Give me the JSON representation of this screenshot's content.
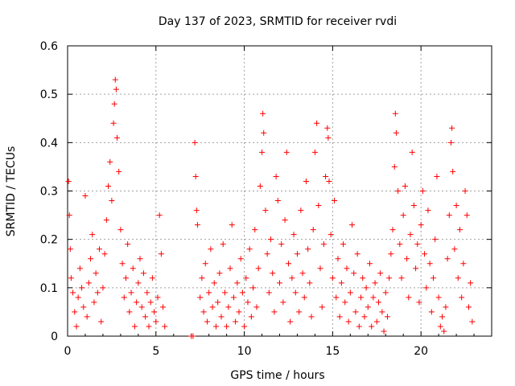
{
  "chart_data": {
    "type": "scatter",
    "title": "Day 137 of 2023, SRMTID for receiver rvdi",
    "xlabel": "GPS time / hours",
    "ylabel": "SRMTID / TECUs",
    "xlim": [
      0,
      24
    ],
    "ylim": [
      0,
      0.6
    ],
    "xticks": [
      0,
      5,
      10,
      15,
      20
    ],
    "yticks": [
      0,
      0.1,
      0.2,
      0.3,
      0.4,
      0.5,
      0.6
    ],
    "grid": true,
    "marker": "plus",
    "series_color": "#ff0000",
    "series": [
      {
        "name": "SRMTID",
        "points": [
          [
            0.05,
            0.32
          ],
          [
            0.1,
            0.25
          ],
          [
            0.15,
            0.18
          ],
          [
            0.2,
            0.12
          ],
          [
            0.3,
            0.09
          ],
          [
            0.4,
            0.05
          ],
          [
            0.5,
            0.02
          ],
          [
            0.6,
            0.08
          ],
          [
            0.7,
            0.14
          ],
          [
            0.8,
            0.1
          ],
          [
            0.9,
            0.06
          ],
          [
            1.0,
            0.29
          ],
          [
            1.1,
            0.04
          ],
          [
            1.2,
            0.11
          ],
          [
            1.3,
            0.16
          ],
          [
            1.4,
            0.21
          ],
          [
            1.5,
            0.07
          ],
          [
            1.6,
            0.13
          ],
          [
            1.7,
            0.09
          ],
          [
            1.8,
            0.18
          ],
          [
            1.9,
            0.03
          ],
          [
            2.0,
            0.1
          ],
          [
            2.1,
            0.17
          ],
          [
            2.2,
            0.24
          ],
          [
            2.3,
            0.31
          ],
          [
            2.4,
            0.36
          ],
          [
            2.5,
            0.28
          ],
          [
            2.6,
            0.44
          ],
          [
            2.65,
            0.48
          ],
          [
            2.7,
            0.53
          ],
          [
            2.75,
            0.51
          ],
          [
            2.8,
            0.41
          ],
          [
            2.9,
            0.34
          ],
          [
            3.0,
            0.22
          ],
          [
            3.1,
            0.15
          ],
          [
            3.2,
            0.08
          ],
          [
            3.3,
            0.12
          ],
          [
            3.4,
            0.19
          ],
          [
            3.5,
            0.05
          ],
          [
            3.6,
            0.09
          ],
          [
            3.7,
            0.14
          ],
          [
            3.8,
            0.02
          ],
          [
            3.9,
            0.07
          ],
          [
            4.0,
            0.11
          ],
          [
            4.1,
            0.16
          ],
          [
            4.2,
            0.06
          ],
          [
            4.3,
            0.13
          ],
          [
            4.4,
            0.04
          ],
          [
            4.5,
            0.09
          ],
          [
            4.6,
            0.02
          ],
          [
            4.7,
            0.07
          ],
          [
            4.8,
            0.12
          ],
          [
            4.9,
            0.05
          ],
          [
            5.0,
            0.03
          ],
          [
            5.1,
            0.08
          ],
          [
            5.2,
            0.25
          ],
          [
            5.3,
            0.17
          ],
          [
            5.4,
            0.06
          ],
          [
            5.5,
            0.02
          ],
          [
            7.0,
            0.0
          ],
          [
            7.1,
            0.0
          ],
          [
            7.2,
            0.4
          ],
          [
            7.25,
            0.33
          ],
          [
            7.3,
            0.26
          ],
          [
            7.35,
            0.23
          ],
          [
            7.5,
            0.08
          ],
          [
            7.6,
            0.12
          ],
          [
            7.7,
            0.05
          ],
          [
            7.8,
            0.15
          ],
          [
            7.9,
            0.03
          ],
          [
            8.0,
            0.09
          ],
          [
            8.1,
            0.18
          ],
          [
            8.2,
            0.06
          ],
          [
            8.3,
            0.11
          ],
          [
            8.4,
            0.02
          ],
          [
            8.5,
            0.07
          ],
          [
            8.6,
            0.13
          ],
          [
            8.7,
            0.04
          ],
          [
            8.8,
            0.19
          ],
          [
            8.9,
            0.09
          ],
          [
            9.0,
            0.02
          ],
          [
            9.1,
            0.06
          ],
          [
            9.2,
            0.14
          ],
          [
            9.3,
            0.23
          ],
          [
            9.4,
            0.08
          ],
          [
            9.5,
            0.03
          ],
          [
            9.6,
            0.11
          ],
          [
            9.7,
            0.05
          ],
          [
            9.8,
            0.16
          ],
          [
            9.9,
            0.09
          ],
          [
            10.0,
            0.02
          ],
          [
            10.1,
            0.12
          ],
          [
            10.2,
            0.07
          ],
          [
            10.3,
            0.18
          ],
          [
            10.4,
            0.04
          ],
          [
            10.5,
            0.1
          ],
          [
            10.6,
            0.22
          ],
          [
            10.7,
            0.06
          ],
          [
            10.8,
            0.14
          ],
          [
            10.9,
            0.31
          ],
          [
            11.0,
            0.38
          ],
          [
            11.05,
            0.46
          ],
          [
            11.1,
            0.42
          ],
          [
            11.2,
            0.26
          ],
          [
            11.3,
            0.17
          ],
          [
            11.4,
            0.09
          ],
          [
            11.5,
            0.2
          ],
          [
            11.6,
            0.13
          ],
          [
            11.7,
            0.05
          ],
          [
            11.8,
            0.33
          ],
          [
            11.9,
            0.28
          ],
          [
            12.0,
            0.11
          ],
          [
            12.1,
            0.19
          ],
          [
            12.2,
            0.07
          ],
          [
            12.3,
            0.24
          ],
          [
            12.4,
            0.38
          ],
          [
            12.5,
            0.15
          ],
          [
            12.6,
            0.03
          ],
          [
            12.7,
            0.12
          ],
          [
            12.8,
            0.21
          ],
          [
            12.9,
            0.09
          ],
          [
            13.0,
            0.17
          ],
          [
            13.1,
            0.05
          ],
          [
            13.2,
            0.26
          ],
          [
            13.3,
            0.13
          ],
          [
            13.4,
            0.08
          ],
          [
            13.5,
            0.32
          ],
          [
            13.6,
            0.18
          ],
          [
            13.7,
            0.11
          ],
          [
            13.8,
            0.04
          ],
          [
            13.9,
            0.22
          ],
          [
            14.0,
            0.38
          ],
          [
            14.1,
            0.44
          ],
          [
            14.2,
            0.27
          ],
          [
            14.3,
            0.14
          ],
          [
            14.4,
            0.06
          ],
          [
            14.5,
            0.19
          ],
          [
            14.6,
            0.33
          ],
          [
            14.7,
            0.43
          ],
          [
            14.75,
            0.41
          ],
          [
            14.8,
            0.32
          ],
          [
            14.9,
            0.21
          ],
          [
            15.0,
            0.12
          ],
          [
            15.1,
            0.28
          ],
          [
            15.2,
            0.08
          ],
          [
            15.3,
            0.16
          ],
          [
            15.4,
            0.04
          ],
          [
            15.5,
            0.11
          ],
          [
            15.6,
            0.19
          ],
          [
            15.7,
            0.07
          ],
          [
            15.8,
            0.14
          ],
          [
            15.9,
            0.03
          ],
          [
            16.0,
            0.09
          ],
          [
            16.1,
            0.23
          ],
          [
            16.2,
            0.13
          ],
          [
            16.3,
            0.05
          ],
          [
            16.4,
            0.17
          ],
          [
            16.5,
            0.02
          ],
          [
            16.6,
            0.08
          ],
          [
            16.7,
            0.12
          ],
          [
            16.8,
            0.04
          ],
          [
            16.9,
            0.1
          ],
          [
            17.0,
            0.06
          ],
          [
            17.1,
            0.15
          ],
          [
            17.2,
            0.02
          ],
          [
            17.3,
            0.08
          ],
          [
            17.4,
            0.11
          ],
          [
            17.5,
            0.03
          ],
          [
            17.6,
            0.07
          ],
          [
            17.7,
            0.13
          ],
          [
            17.8,
            0.05
          ],
          [
            17.9,
            0.01
          ],
          [
            18.0,
            0.09
          ],
          [
            18.1,
            0.04
          ],
          [
            18.2,
            0.12
          ],
          [
            18.3,
            0.17
          ],
          [
            18.4,
            0.22
          ],
          [
            18.5,
            0.35
          ],
          [
            18.55,
            0.46
          ],
          [
            18.6,
            0.42
          ],
          [
            18.7,
            0.3
          ],
          [
            18.8,
            0.19
          ],
          [
            18.9,
            0.12
          ],
          [
            19.0,
            0.25
          ],
          [
            19.1,
            0.31
          ],
          [
            19.2,
            0.16
          ],
          [
            19.3,
            0.08
          ],
          [
            19.4,
            0.21
          ],
          [
            19.5,
            0.38
          ],
          [
            19.6,
            0.27
          ],
          [
            19.7,
            0.14
          ],
          [
            19.8,
            0.19
          ],
          [
            19.9,
            0.07
          ],
          [
            20.0,
            0.23
          ],
          [
            20.1,
            0.3
          ],
          [
            20.2,
            0.17
          ],
          [
            20.3,
            0.1
          ],
          [
            20.4,
            0.26
          ],
          [
            20.5,
            0.15
          ],
          [
            20.6,
            0.05
          ],
          [
            20.7,
            0.12
          ],
          [
            20.8,
            0.2
          ],
          [
            20.9,
            0.33
          ],
          [
            21.0,
            0.08
          ],
          [
            21.1,
            0.02
          ],
          [
            21.2,
            0.04
          ],
          [
            21.3,
            0.01
          ],
          [
            21.4,
            0.06
          ],
          [
            21.5,
            0.16
          ],
          [
            21.6,
            0.25
          ],
          [
            21.7,
            0.4
          ],
          [
            21.75,
            0.43
          ],
          [
            21.8,
            0.34
          ],
          [
            21.9,
            0.18
          ],
          [
            22.0,
            0.27
          ],
          [
            22.1,
            0.12
          ],
          [
            22.2,
            0.22
          ],
          [
            22.3,
            0.08
          ],
          [
            22.4,
            0.15
          ],
          [
            22.5,
            0.3
          ],
          [
            22.6,
            0.25
          ],
          [
            22.7,
            0.06
          ],
          [
            22.8,
            0.11
          ],
          [
            22.9,
            0.03
          ]
        ]
      }
    ]
  }
}
